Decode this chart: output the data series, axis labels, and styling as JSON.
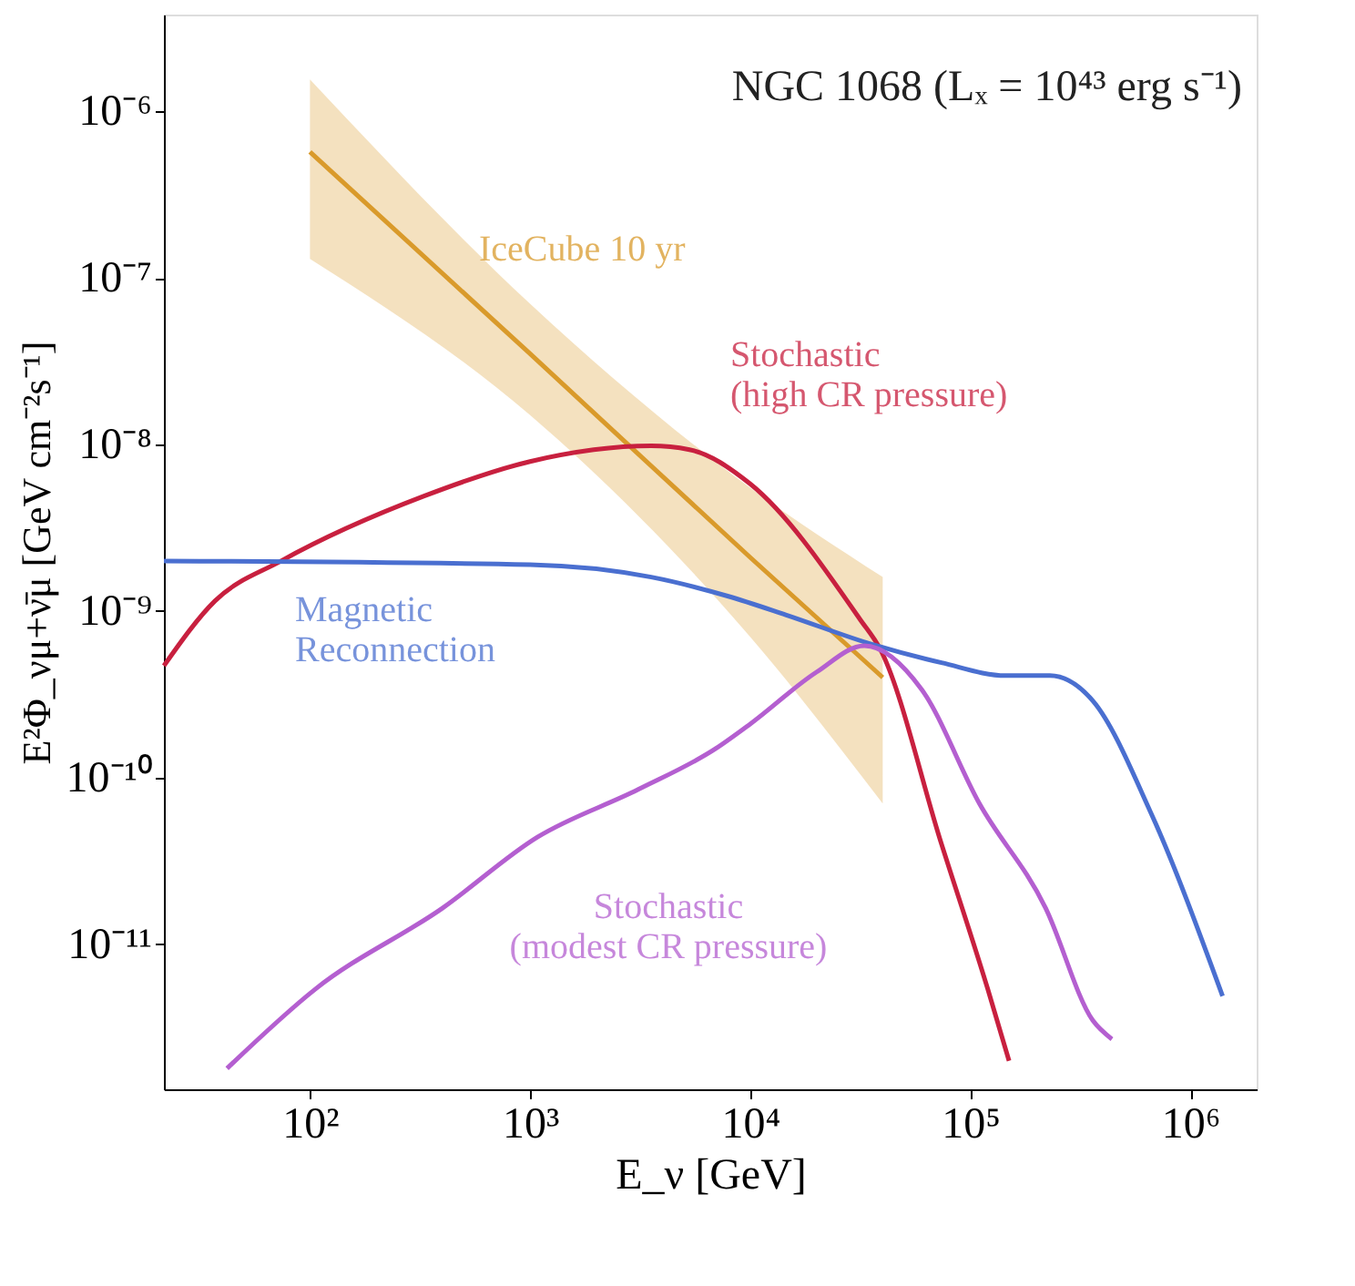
{
  "chart_data": {
    "type": "line",
    "title": "NGC 1068 (Lₓ = 10⁴³ erg s⁻¹)",
    "xlabel": "E_ν [GeV]",
    "ylabel": "E²Φ_νμ+ν̄μ [GeV cm⁻²s⁻¹]",
    "log": "xy",
    "grid": false,
    "line_style": "solid",
    "marker": "none",
    "xlim": [
      21.7,
      2000000
    ],
    "ylim": [
      1.35e-12,
      3.8e-06
    ],
    "xticks": [
      {
        "value": 100,
        "label": "10²"
      },
      {
        "value": 1000,
        "label": "10³"
      },
      {
        "value": 10000,
        "label": "10⁴"
      },
      {
        "value": 100000,
        "label": "10⁵"
      },
      {
        "value": 1000000,
        "label": "10⁶"
      }
    ],
    "yticks": [
      {
        "value": 1e-11,
        "label": "10⁻¹¹"
      },
      {
        "value": 1e-10,
        "label": "10⁻¹⁰"
      },
      {
        "value": 1e-09,
        "label": "10⁻⁹"
      },
      {
        "value": 1e-08,
        "label": "10⁻⁸"
      },
      {
        "value": 1e-07,
        "label": "10⁻⁷"
      },
      {
        "value": 1e-06,
        "label": "10⁻⁶"
      }
    ],
    "series": [
      {
        "name": "IceCube 10 yr",
        "color": "#d99a2b",
        "x": [
          100,
          1000,
          10000,
          40000
        ],
        "values": [
          5.7e-07,
          3.5e-08,
          2.1e-09,
          4e-10
        ],
        "lower": [
          1.3e-07,
          1.5e-08,
          7e-10,
          7e-11
        ],
        "upper": [
          1.55e-06,
          7e-08,
          5.5e-09,
          1.6e-09
        ]
      },
      {
        "name": "Stochastic\n(high CR pressure)",
        "color": "#c8203f",
        "x": [
          21.7,
          37,
          74,
          330,
          1000,
          3550,
          5300,
          10000,
          31600,
          39000,
          74000,
          120000,
          150000
        ],
        "values": [
          4.7e-10,
          1.15e-09,
          2e-09,
          4.9e-09,
          7.9e-09,
          9.8e-09,
          9.3e-09,
          5.8e-09,
          8.9e-10,
          5.9e-10,
          4e-11,
          5.4e-12,
          2e-12
        ]
      },
      {
        "name": "Magnetic\nReconnection",
        "color": "#4a6fd0",
        "x": [
          21.7,
          1000,
          3550,
          7900,
          14500,
          36000,
          74000,
          145000,
          230000,
          360000,
          660000,
          1400000
        ],
        "values": [
          2e-09,
          1.9e-09,
          1.6e-09,
          1.23e-09,
          9.5e-10,
          6.3e-10,
          4.9e-10,
          4.1e-10,
          4.1e-10,
          2.9e-10,
          6.2e-11,
          4.9e-12
        ]
      },
      {
        "name": "Stochastic\n(modest CR pressure)",
        "color": "#b45fd0",
        "x": [
          42,
          106,
          400,
          1080,
          3100,
          7000,
          10000,
          20000,
          33000,
          60000,
          110000,
          220000,
          360000,
          440000
        ],
        "values": [
          1.8e-12,
          5.4e-12,
          1.65e-11,
          4.4e-11,
          8.5e-11,
          1.5e-10,
          2.1e-10,
          4.3e-10,
          6.2e-10,
          3.4e-10,
          7e-11,
          1.65e-11,
          3.5e-12,
          2.7e-12
        ]
      }
    ]
  }
}
